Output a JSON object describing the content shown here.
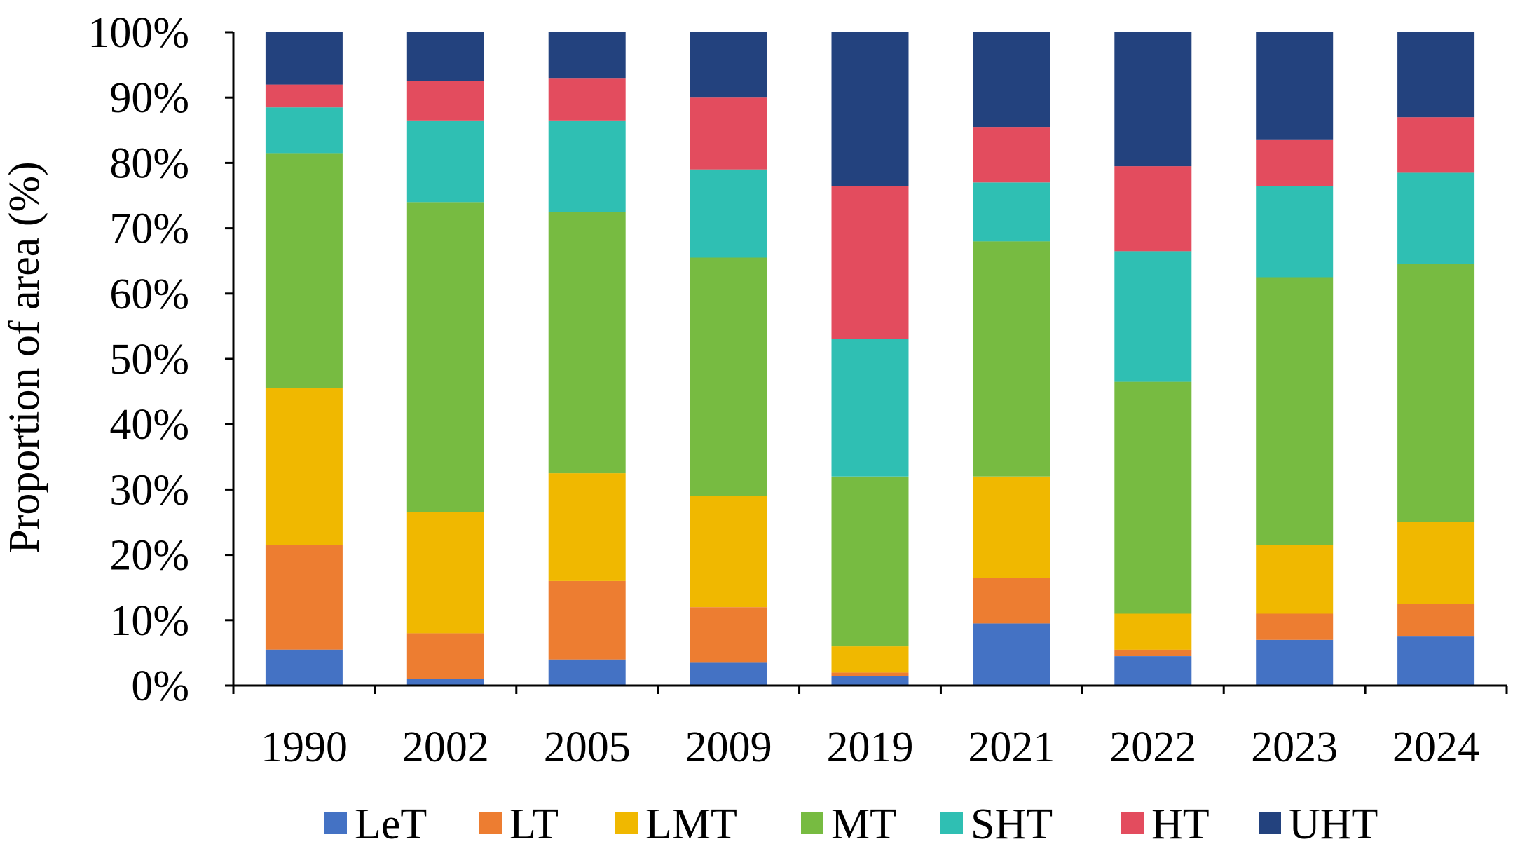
{
  "chart_data": {
    "type": "bar",
    "stacked": true,
    "percent_stacked": true,
    "title": "",
    "xlabel": "",
    "ylabel": "Proportion of area (%)",
    "ylim": [
      0,
      100
    ],
    "y_ticks": [
      "0%",
      "10%",
      "20%",
      "30%",
      "40%",
      "50%",
      "60%",
      "70%",
      "80%",
      "90%",
      "100%"
    ],
    "categories": [
      "1990",
      "2002",
      "2005",
      "2009",
      "2019",
      "2021",
      "2022",
      "2023",
      "2024"
    ],
    "grid": false,
    "legend_position": "bottom",
    "series": [
      {
        "name": "LeT",
        "color": "#4472C4",
        "values": [
          5.5,
          1.0,
          4.0,
          3.5,
          1.5,
          9.5,
          4.5,
          7.0,
          7.5
        ]
      },
      {
        "name": "LT",
        "color": "#ED7D31",
        "values": [
          16.0,
          7.0,
          12.0,
          8.5,
          0.5,
          7.0,
          1.0,
          4.0,
          5.0
        ]
      },
      {
        "name": "LMT",
        "color": "#F0B800",
        "values": [
          24.0,
          18.5,
          16.5,
          17.0,
          4.0,
          15.5,
          5.5,
          10.5,
          12.5
        ]
      },
      {
        "name": "MT",
        "color": "#77BB41",
        "values": [
          36.0,
          47.5,
          40.0,
          36.5,
          26.0,
          36.0,
          35.5,
          41.0,
          39.5
        ]
      },
      {
        "name": "SHT",
        "color": "#2FBFB3",
        "values": [
          7.0,
          12.5,
          14.0,
          13.5,
          21.0,
          9.0,
          20.0,
          14.0,
          14.0
        ]
      },
      {
        "name": "HT",
        "color": "#E34C5E",
        "values": [
          3.5,
          6.0,
          6.5,
          11.0,
          23.5,
          8.5,
          13.0,
          7.0,
          8.5
        ]
      },
      {
        "name": "UHT",
        "color": "#23427E",
        "values": [
          8.0,
          7.5,
          7.0,
          10.0,
          23.5,
          14.5,
          20.5,
          16.5,
          13.0
        ]
      }
    ]
  }
}
